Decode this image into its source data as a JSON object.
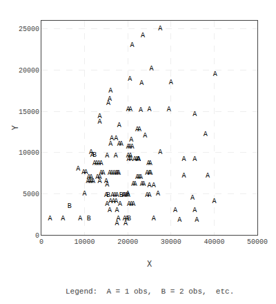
{
  "chart_data": {
    "type": "scatter",
    "marker": "text",
    "xlabel": "X",
    "ylabel": "Y",
    "annotations": [
      "Legend:  A = 1 obs,  B = 2 obs,  etc."
    ],
    "xlim": [
      0,
      50000
    ],
    "ylim": [
      0,
      26000
    ],
    "xticks": [
      0,
      10000,
      20000,
      30000,
      40000,
      50000
    ],
    "yticks": [
      0,
      5000,
      10000,
      15000,
      20000,
      25000
    ],
    "grid": true,
    "x": [
      27500,
      23500,
      21000,
      25500,
      40200,
      20500,
      23200,
      30000,
      16000,
      15800,
      15500,
      20100,
      20600,
      23000,
      25000,
      29500,
      13500,
      13500,
      18000,
      22200,
      22700,
      24000,
      35500,
      38000,
      16300,
      17300,
      20800,
      16000,
      18000,
      18500,
      20100,
      20500,
      21000,
      11500,
      27500,
      11800,
      12300,
      15200,
      17200,
      20100,
      20600,
      20200,
      20700,
      21600,
      22100,
      22500,
      22500,
      22500,
      12300,
      12800,
      13300,
      13800,
      24800,
      25200,
      33000,
      35500,
      33000,
      38500,
      8500,
      9800,
      10300,
      13800,
      14300,
      15800,
      16300,
      16800,
      17300,
      17600,
      17900,
      24500,
      25000,
      25300,
      11000,
      11500,
      13000,
      13500,
      22200,
      22600,
      23000,
      10800,
      11200,
      11600,
      12000,
      13500,
      15000,
      15200,
      21300,
      21700,
      23300,
      23700,
      25000,
      26000,
      10000,
      20000,
      27000,
      15000,
      15500,
      16500,
      17000,
      17500,
      18500,
      19000,
      19300,
      19700,
      20100,
      24500,
      25000,
      35000,
      16000,
      16700,
      17300,
      40000,
      15200,
      18200,
      20300,
      20800,
      21300,
      6500,
      15800,
      17500,
      31000,
      35500,
      2000,
      5000,
      9000,
      11000,
      17800,
      19300,
      19800,
      20300,
      26000,
      32000,
      36000,
      17500,
      19500
    ],
    "values": [
      25000,
      24200,
      23000,
      20200,
      19500,
      18900,
      18400,
      18500,
      17500,
      16500,
      16000,
      15200,
      15200,
      15100,
      15200,
      15200,
      14400,
      13700,
      13300,
      12800,
      12800,
      12000,
      14600,
      12200,
      11700,
      11700,
      11500,
      11000,
      11000,
      11000,
      10700,
      10700,
      10700,
      10000,
      10000,
      9700,
      9700,
      9600,
      9600,
      9600,
      9600,
      9200,
      9200,
      9200,
      9200,
      9200,
      9200,
      9200,
      8700,
      8700,
      8700,
      8700,
      8700,
      8700,
      9200,
      9200,
      7200,
      7200,
      8000,
      7600,
      7600,
      7500,
      7500,
      7500,
      7500,
      7500,
      7500,
      7500,
      7500,
      7500,
      7500,
      7500,
      7000,
      7000,
      7000,
      7000,
      7000,
      7000,
      7000,
      6500,
      6500,
      6500,
      6500,
      6500,
      6500,
      6100,
      6200,
      6200,
      6200,
      6200,
      6000,
      6000,
      5000,
      5000,
      5000,
      4800,
      4800,
      4800,
      4800,
      4800,
      4800,
      4800,
      4800,
      4800,
      4800,
      4800,
      4800,
      4500,
      4100,
      4100,
      4100,
      4100,
      3700,
      3700,
      3700,
      3700,
      3700,
      3500,
      3000,
      3000,
      3000,
      3000,
      2000,
      2000,
      2000,
      2000,
      2000,
      2000,
      2000,
      2000,
      2000,
      1800,
      1800,
      1400,
      1400
    ],
    "labels": [
      "A",
      "A",
      "A",
      "A",
      "A",
      "A",
      "A",
      "A",
      "A",
      "A",
      "A",
      "A",
      "A",
      "A",
      "A",
      "A",
      "A",
      "A",
      "A",
      "A",
      "A",
      "A",
      "A",
      "A",
      "A",
      "A",
      "A",
      "A",
      "A",
      "A",
      "A",
      "A",
      "A",
      "A",
      "A",
      "A",
      "B",
      "A",
      "A",
      "A",
      "A",
      "A",
      "A",
      "A",
      "A",
      "A",
      "A",
      "A",
      "A",
      "A",
      "A",
      "A",
      "A",
      "A",
      "A",
      "A",
      "A",
      "A",
      "A",
      "A",
      "A",
      "A",
      "A",
      "A",
      "A",
      "A",
      "A",
      "A",
      "A",
      "A",
      "A",
      "A",
      "A",
      "A",
      "A",
      "A",
      "A",
      "A",
      "A",
      "A",
      "A",
      "A",
      "A",
      "A",
      "A",
      "A",
      "A",
      "A",
      "A",
      "A",
      "A",
      "A",
      "A",
      "A",
      "A",
      "A",
      "B",
      "A",
      "A",
      "A",
      "B",
      "A",
      "A",
      "A",
      "A",
      "A",
      "A",
      "A",
      "A",
      "A",
      "A",
      "A",
      "A",
      "A",
      "A",
      "A",
      "A",
      "B",
      "A",
      "A",
      "A",
      "A",
      "A",
      "A",
      "A",
      "B",
      "A",
      "A",
      "A",
      "B",
      "A",
      "A",
      "A",
      "A",
      "A"
    ]
  }
}
